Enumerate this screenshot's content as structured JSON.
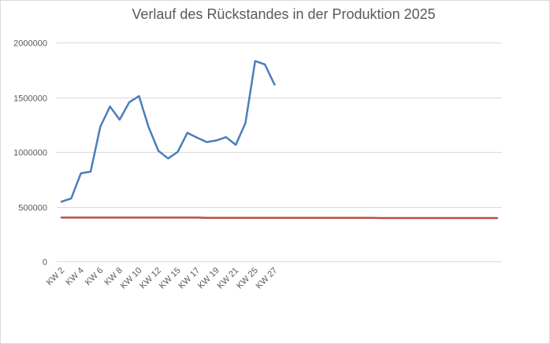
{
  "chart_data": {
    "type": "line",
    "title": "Verlauf des Rückstandes in der Produktion 2025",
    "xlabel": "",
    "ylabel": "",
    "ylim": [
      0,
      2000000
    ],
    "y_ticks": [
      "0",
      "500000",
      "1000000",
      "1500000",
      "2000000"
    ],
    "y_tick_values": [
      0,
      500000,
      1000000,
      1500000,
      2000000
    ],
    "grid": true,
    "legend": "none",
    "x_labels": [
      "KW 2",
      "KW 4",
      "KW 6",
      "KW 8",
      "KW 10",
      "KW 12",
      "KW 15",
      "KW 17",
      "KW 19",
      "KW 21",
      "KW 25",
      "KW 27"
    ],
    "x_slots": 46,
    "series": [
      {
        "color": "#4a7ebb",
        "values": [
          545000,
          575000,
          805000,
          820000,
          1230000,
          1415000,
          1295000,
          1455000,
          1510000,
          1225000,
          1010000,
          940000,
          1000000,
          1175000,
          1130000,
          1090000,
          1105000,
          1135000,
          1065000,
          1265000,
          1830000,
          1800000,
          1615000
        ]
      },
      {
        "color": "#be4b48",
        "values": [
          400000,
          400000,
          400000,
          400000,
          400000,
          400000,
          400000,
          400000,
          400000,
          400000,
          400000,
          400000,
          400000,
          400000,
          400000,
          398000,
          398000,
          398000,
          398000,
          398000,
          398000,
          398000,
          398000,
          398000,
          398000,
          398000,
          398000,
          398000,
          398000,
          398000,
          398000,
          398000,
          398000,
          396000,
          396000,
          396000,
          396000,
          396000,
          396000,
          396000,
          396000,
          396000,
          396000,
          396000,
          396000,
          396000
        ]
      }
    ]
  }
}
